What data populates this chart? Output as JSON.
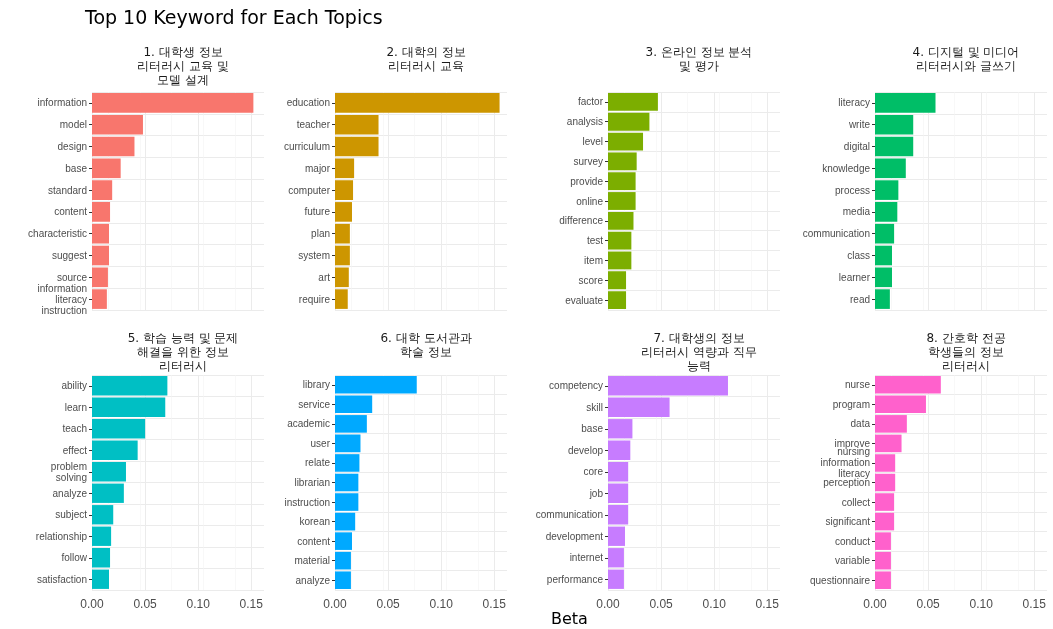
{
  "chart_data": [
    {
      "type": "bar",
      "orientation": "horizontal",
      "title": "1. 대학생 정보\n리터러시 교육 및\n모델 설계",
      "annotations": [
        "Top 10 Keyword for Each Topics"
      ],
      "categories": [
        "information",
        "model",
        "design",
        "base",
        "standard",
        "content",
        "characteristic",
        "suggest",
        "source",
        "information\nliteracy\ninstruction"
      ],
      "values": [
        0.152,
        0.048,
        0.04,
        0.027,
        0.019,
        0.017,
        0.016,
        0.016,
        0.015,
        0.014
      ],
      "color": "#f8766d",
      "xlim": [
        0,
        0.162
      ],
      "xticks": [
        0,
        0.05,
        0.1,
        0.15
      ],
      "tick_labels": "y",
      "grid": true,
      "legend": false
    },
    {
      "type": "bar",
      "orientation": "horizontal",
      "title": "2. 대학의 정보\n리터러시 교육",
      "categories": [
        "education",
        "teacher",
        "curriculum",
        "major",
        "computer",
        "future",
        "plan",
        "system",
        "art",
        "require"
      ],
      "values": [
        0.155,
        0.041,
        0.041,
        0.018,
        0.017,
        0.016,
        0.014,
        0.014,
        0.013,
        0.012
      ],
      "color": "#cd9600",
      "xlim": [
        0,
        0.162
      ],
      "xticks": [
        0,
        0.05,
        0.1,
        0.15
      ],
      "tick_labels": "y",
      "grid": true,
      "legend": false
    },
    {
      "type": "bar",
      "orientation": "horizontal",
      "title": "3. 온라인 정보 분석\n및 평가",
      "categories": [
        "factor",
        "analysis",
        "level",
        "survey",
        "provide",
        "online",
        "difference",
        "test",
        "item",
        "score",
        "evaluate"
      ],
      "values": [
        0.047,
        0.039,
        0.033,
        0.027,
        0.026,
        0.026,
        0.024,
        0.022,
        0.022,
        0.017,
        0.017
      ],
      "color": "#7cae00",
      "xlim": [
        0,
        0.162
      ],
      "xticks": [
        0,
        0.05,
        0.1,
        0.15
      ],
      "tick_labels": "y",
      "grid": true,
      "legend": false
    },
    {
      "type": "bar",
      "orientation": "horizontal",
      "title": "4. 디지털 및 미디어\n리터러시와 글쓰기",
      "categories": [
        "literacy",
        "write",
        "digital",
        "knowledge",
        "process",
        "media",
        "communication",
        "class",
        "learner",
        "read"
      ],
      "values": [
        0.057,
        0.036,
        0.036,
        0.029,
        0.022,
        0.021,
        0.018,
        0.016,
        0.016,
        0.014
      ],
      "color": "#00be67",
      "xlim": [
        0,
        0.162
      ],
      "xticks": [
        0,
        0.05,
        0.1,
        0.15
      ],
      "tick_labels": "y",
      "grid": true,
      "legend": false
    },
    {
      "type": "bar",
      "orientation": "horizontal",
      "title": "5. 학습 능력 및 문제\n해결을 위한 정보\n리터러시",
      "categories": [
        "ability",
        "learn",
        "teach",
        "effect",
        "problem\nsolving",
        "analyze",
        "subject",
        "relationship",
        "follow",
        "satisfaction"
      ],
      "values": [
        0.071,
        0.069,
        0.05,
        0.043,
        0.032,
        0.03,
        0.02,
        0.018,
        0.017,
        0.016
      ],
      "color": "#00bfc4",
      "xlim": [
        0,
        0.162
      ],
      "xticks": [
        {
          "value": 0,
          "label": "0.00"
        },
        {
          "value": 0.05,
          "label": "0.05"
        },
        {
          "value": 0.1,
          "label": "0.10"
        },
        {
          "value": 0.15,
          "label": "0.15"
        }
      ],
      "grid": true,
      "legend": false
    },
    {
      "type": "bar",
      "orientation": "horizontal",
      "title": "6. 대학 도서관과\n학술 정보",
      "categories": [
        "library",
        "service",
        "academic",
        "user",
        "relate",
        "librarian",
        "instruction",
        "korean",
        "content",
        "material",
        "analyze"
      ],
      "values": [
        0.077,
        0.035,
        0.03,
        0.024,
        0.023,
        0.022,
        0.022,
        0.019,
        0.016,
        0.015,
        0.015
      ],
      "color": "#00a9ff",
      "xlim": [
        0,
        0.162
      ],
      "xticks": [
        {
          "value": 0,
          "label": "0.00"
        },
        {
          "value": 0.05,
          "label": "0.05"
        },
        {
          "value": 0.1,
          "label": "0.10"
        },
        {
          "value": 0.15,
          "label": "0.15"
        }
      ],
      "grid": true,
      "legend": false
    },
    {
      "type": "bar",
      "orientation": "horizontal",
      "title": "7. 대학생의 정보\n리터러시 역량과 직무\n능력",
      "xlabel": "Beta",
      "categories": [
        "competency",
        "skill",
        "base",
        "develop",
        "core",
        "job",
        "communication",
        "development",
        "internet",
        "performance"
      ],
      "values": [
        0.113,
        0.058,
        0.023,
        0.021,
        0.019,
        0.019,
        0.019,
        0.016,
        0.015,
        0.015
      ],
      "color": "#c77cff",
      "xlim": [
        0,
        0.162
      ],
      "xticks": [
        {
          "value": 0,
          "label": "0.00"
        },
        {
          "value": 0.05,
          "label": "0.05"
        },
        {
          "value": 0.1,
          "label": "0.10"
        },
        {
          "value": 0.15,
          "label": "0.15"
        }
      ],
      "grid": true,
      "legend": false
    },
    {
      "type": "bar",
      "orientation": "horizontal",
      "title": "8. 간호학 전공\n학생들의 정보\n리터러시",
      "categories": [
        "nurse",
        "program",
        "data",
        "improve",
        "nursing\ninformation\nliteracy",
        "perception",
        "collect",
        "significant",
        "conduct",
        "variable",
        "questionnaire"
      ],
      "values": [
        0.062,
        0.048,
        0.03,
        0.025,
        0.019,
        0.019,
        0.018,
        0.018,
        0.015,
        0.015,
        0.015
      ],
      "color": "#ff61cc",
      "xlim": [
        0,
        0.162
      ],
      "xticks": [
        {
          "value": 0,
          "label": "0.00"
        },
        {
          "value": 0.05,
          "label": "0.05"
        },
        {
          "value": 0.1,
          "label": "0.10"
        },
        {
          "value": 0.15,
          "label": "0.15"
        }
      ],
      "grid": true,
      "legend": false
    }
  ]
}
